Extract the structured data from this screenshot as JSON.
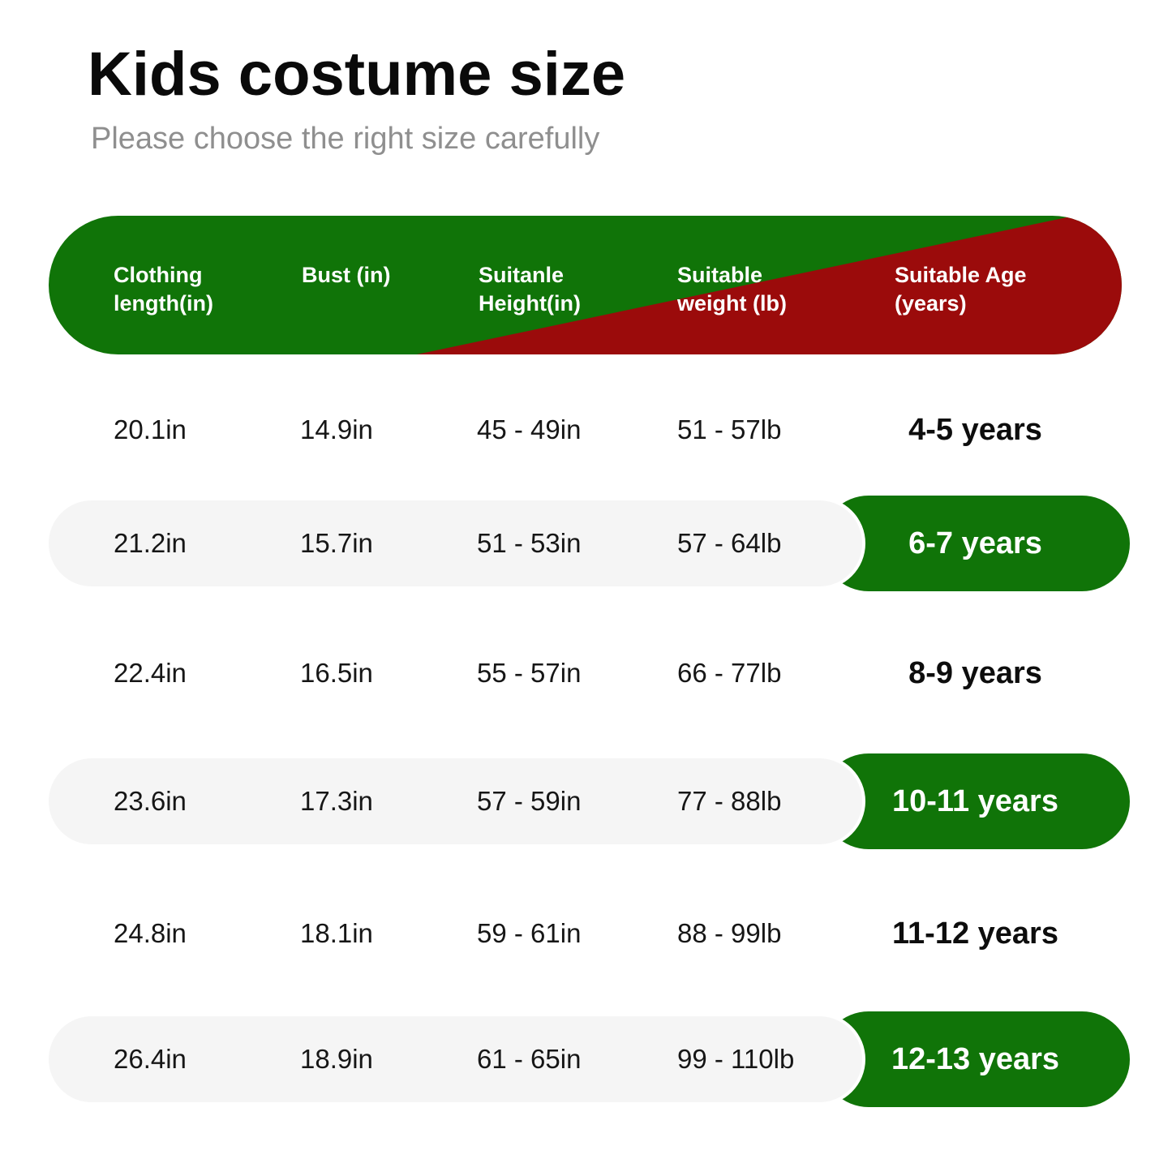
{
  "page": {
    "title": "Kids costume size",
    "subtitle": "Please choose the right size carefully"
  },
  "colors": {
    "header_green": "#107408",
    "header_red": "#9b0b0b",
    "row_pill_gray": "#f5f5f5",
    "highlight_pill_green": "#107408",
    "subtitle_gray": "#8f8f8f",
    "text_black": "#161616",
    "header_text_white": "#ffffff"
  },
  "chart_data": {
    "type": "table",
    "title": "Kids costume size",
    "subtitle": "Please choose the right size carefully",
    "columns": [
      "Clothing length(in)",
      "Bust (in)",
      "Suitanle Height(in)",
      "Suitable weight (lb)",
      "Suitable Age (years)"
    ],
    "rows": [
      [
        "20.1in",
        "14.9in",
        "45 - 49in",
        "51 - 57lb",
        "4-5 years"
      ],
      [
        "21.2in",
        "15.7in",
        "51 - 53in",
        "57 - 64lb",
        "6-7 years"
      ],
      [
        "22.4in",
        "16.5in",
        "55 - 57in",
        "66 - 77lb",
        "8-9 years"
      ],
      [
        "23.6in",
        "17.3in",
        "57 - 59in",
        "77 - 88lb",
        "10-11 years"
      ],
      [
        "24.8in",
        "18.1in",
        "59 - 61in",
        "88 - 99lb",
        "11-12 years"
      ],
      [
        "26.4in",
        "18.9in",
        "61 - 65in",
        "99 - 110lb",
        "12-13 years"
      ]
    ],
    "highlighted_rows": [
      1,
      3,
      5
    ],
    "layout_hints": {
      "header_style": "green-to-red diagonal split pill",
      "highlight_style": "gray pill row with green age pill on right"
    }
  }
}
